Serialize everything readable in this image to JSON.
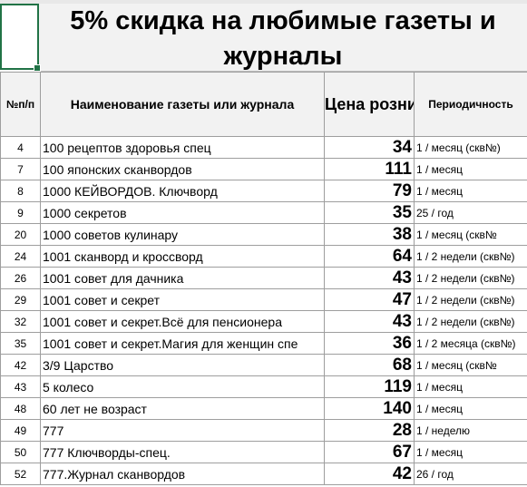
{
  "title": "5% скидка на любимые газеты и журналы",
  "headers": {
    "num": "№п/п",
    "name": "Наименование газеты или журнала",
    "price": "Цена розница (руб)",
    "period": "Периодичность"
  },
  "rows": [
    {
      "num": "4",
      "name": "100 рецептов здоровья спец",
      "price": "34",
      "period": "1 / месяц (скв№)"
    },
    {
      "num": "7",
      "name": "100 японских сканвордов",
      "price": "111",
      "period": "1 / месяц"
    },
    {
      "num": "8",
      "name": "1000 КЕЙВОРДОВ. Ключворд",
      "price": "79",
      "period": "1 / месяц"
    },
    {
      "num": "9",
      "name": "1000 секретов",
      "price": "35",
      "period": "25 / год"
    },
    {
      "num": "20",
      "name": "1000 советов кулинару",
      "price": "38",
      "period": "1 / месяц (скв№"
    },
    {
      "num": "24",
      "name": "1001 сканворд и кроссворд",
      "price": "64",
      "period": "1 / 2 недели (скв№)"
    },
    {
      "num": "26",
      "name": "1001 совет для дачника",
      "price": "43",
      "period": "1 / 2 недели (скв№)"
    },
    {
      "num": "29",
      "name": "1001 совет и секрет",
      "price": "47",
      "period": "1 / 2 недели (скв№)"
    },
    {
      "num": "32",
      "name": "1001 совет и секрет.Всё для пенсионера",
      "price": "43",
      "period": "1 / 2 недели (скв№)"
    },
    {
      "num": "35",
      "name": "1001 совет и секрет.Магия для женщин спе",
      "price": "36",
      "period": "1 / 2 месяца (скв№)"
    },
    {
      "num": "42",
      "name": "3/9 Царство",
      "price": "68",
      "period": "1 / месяц (скв№"
    },
    {
      "num": "43",
      "name": "5 колесо",
      "price": "119",
      "period": "1 / месяц"
    },
    {
      "num": "48",
      "name": "60 лет не возраст",
      "price": "140",
      "period": "1 / месяц"
    },
    {
      "num": "49",
      "name": "777",
      "price": "28",
      "period": "1 / неделю"
    },
    {
      "num": "50",
      "name": "777 Ключворды-спец.",
      "price": "67",
      "period": "1 / месяц"
    },
    {
      "num": "52",
      "name": "777.Журнал сканвордов",
      "price": "42",
      "period": "26 / год"
    }
  ]
}
